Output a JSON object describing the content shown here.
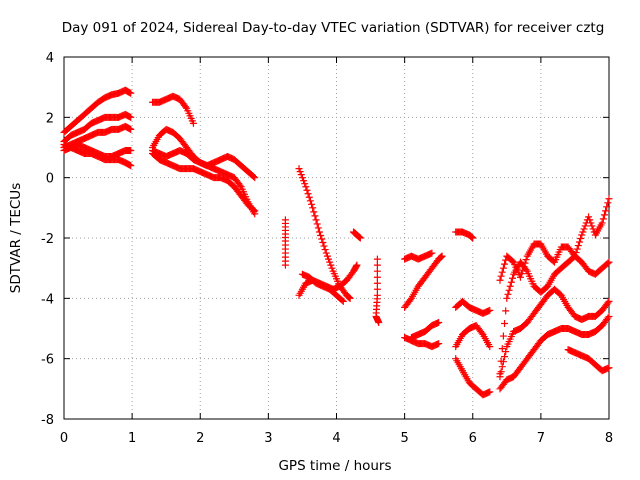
{
  "chart_data": {
    "type": "scatter",
    "title": "Day 091 of 2024, Sidereal Day-to-day VTEC variation (SDTVAR) for receiver cztg",
    "xlabel": "GPS time / hours",
    "ylabel": "SDTVAR / TECUs",
    "xlim": [
      0,
      8
    ],
    "ylim": [
      -8,
      4
    ],
    "xticks": [
      "0",
      "1",
      "2",
      "3",
      "4",
      "5",
      "6",
      "7",
      "8"
    ],
    "yticks": [
      "-8",
      "-6",
      "-4",
      "-2",
      "0",
      "2",
      "4"
    ],
    "grid": true,
    "marker": "plus",
    "color": "#ff0000",
    "series": [
      {
        "x": [
          0.0,
          0.1,
          0.2,
          0.3,
          0.4,
          0.5,
          0.6,
          0.7,
          0.8,
          0.9,
          0.98
        ],
        "y": [
          1.5,
          1.7,
          1.9,
          2.1,
          2.3,
          2.5,
          2.65,
          2.75,
          2.8,
          2.9,
          2.8
        ]
      },
      {
        "x": [
          0.0,
          0.1,
          0.2,
          0.3,
          0.4,
          0.5,
          0.6,
          0.7,
          0.8,
          0.9,
          0.98
        ],
        "y": [
          1.2,
          1.4,
          1.5,
          1.6,
          1.8,
          1.9,
          2.0,
          2.0,
          2.0,
          2.1,
          2.0
        ]
      },
      {
        "x": [
          0.0,
          0.1,
          0.2,
          0.3,
          0.4,
          0.5,
          0.6,
          0.7,
          0.8,
          0.9,
          0.98
        ],
        "y": [
          1.0,
          1.1,
          1.2,
          1.3,
          1.4,
          1.5,
          1.5,
          1.6,
          1.6,
          1.7,
          1.6
        ]
      },
      {
        "x": [
          0.0,
          0.1,
          0.2,
          0.3,
          0.4,
          0.5,
          0.6,
          0.7,
          0.8,
          0.9,
          0.98
        ],
        "y": [
          0.9,
          1.0,
          1.1,
          1.0,
          0.9,
          0.8,
          0.7,
          0.7,
          0.8,
          0.9,
          0.9
        ]
      },
      {
        "x": [
          0.0,
          0.1,
          0.2,
          0.3,
          0.4,
          0.5,
          0.6,
          0.7,
          0.8,
          0.9,
          0.98
        ],
        "y": [
          1.1,
          1.0,
          0.9,
          0.8,
          0.8,
          0.7,
          0.6,
          0.6,
          0.6,
          0.5,
          0.4
        ]
      },
      {
        "x": [
          1.3,
          1.4,
          1.5,
          1.6,
          1.7,
          1.8,
          1.9
        ],
        "y": [
          2.5,
          2.5,
          2.6,
          2.7,
          2.6,
          2.3,
          1.8
        ]
      },
      {
        "x": [
          1.3,
          1.4,
          1.5,
          1.6,
          1.7,
          1.8,
          1.9,
          2.0,
          2.1,
          2.2,
          2.3,
          2.4,
          2.5,
          2.6,
          2.7,
          2.8
        ],
        "y": [
          1.0,
          1.4,
          1.6,
          1.5,
          1.3,
          1.0,
          0.7,
          0.5,
          0.4,
          0.5,
          0.6,
          0.7,
          0.6,
          0.4,
          0.2,
          0.0
        ]
      },
      {
        "x": [
          1.3,
          1.4,
          1.5,
          1.6,
          1.7,
          1.8,
          1.9,
          2.0,
          2.1,
          2.2,
          2.3,
          2.4,
          2.5,
          2.6,
          2.7,
          2.8
        ],
        "y": [
          0.9,
          0.8,
          0.7,
          0.8,
          0.9,
          0.8,
          0.6,
          0.5,
          0.4,
          0.3,
          0.2,
          0.1,
          0.0,
          -0.3,
          -0.8,
          -1.2
        ]
      },
      {
        "x": [
          1.3,
          1.4,
          1.5,
          1.6,
          1.7,
          1.8,
          1.9,
          2.0,
          2.1,
          2.2,
          2.3,
          2.4,
          2.5,
          2.6,
          2.7,
          2.8
        ],
        "y": [
          0.8,
          0.6,
          0.5,
          0.4,
          0.3,
          0.3,
          0.3,
          0.2,
          0.1,
          0.0,
          0.0,
          -0.1,
          -0.3,
          -0.6,
          -0.9,
          -1.1
        ]
      },
      {
        "x": [
          3.25,
          3.25,
          3.25
        ],
        "y": [
          -1.4,
          -2.1,
          -2.9
        ]
      },
      {
        "x": [
          3.45,
          3.55,
          3.65,
          3.75,
          3.85,
          3.95,
          4.05,
          4.15,
          4.2
        ],
        "y": [
          0.3,
          -0.3,
          -1.0,
          -1.8,
          -2.5,
          -3.1,
          -3.6,
          -3.9,
          -4.0
        ]
      },
      {
        "x": [
          3.45,
          3.55,
          3.65,
          3.75,
          3.85,
          3.95,
          4.05,
          4.15,
          4.25,
          4.3
        ],
        "y": [
          -3.9,
          -3.5,
          -3.4,
          -3.5,
          -3.6,
          -3.7,
          -3.6,
          -3.4,
          -3.1,
          -2.9
        ]
      },
      {
        "x": [
          3.5,
          3.6,
          3.7,
          3.8,
          3.9,
          4.0,
          4.1
        ],
        "y": [
          -3.2,
          -3.3,
          -3.5,
          -3.6,
          -3.7,
          -3.9,
          -4.1
        ]
      },
      {
        "x": [
          4.25,
          4.3,
          4.35
        ],
        "y": [
          -1.8,
          -1.9,
          -2.0
        ]
      },
      {
        "x": [
          4.6,
          4.6,
          4.58,
          4.62
        ],
        "y": [
          -2.7,
          -3.9,
          -4.6,
          -4.8
        ]
      },
      {
        "x": [
          5.0,
          5.1,
          5.2,
          5.3,
          5.4
        ],
        "y": [
          -2.7,
          -2.6,
          -2.7,
          -2.6,
          -2.5
        ]
      },
      {
        "x": [
          5.0,
          5.1,
          5.2,
          5.3,
          5.4,
          5.5,
          5.55
        ],
        "y": [
          -4.3,
          -4.0,
          -3.6,
          -3.3,
          -3.0,
          -2.7,
          -2.6
        ]
      },
      {
        "x": [
          5.0,
          5.1,
          5.2,
          5.3,
          5.4,
          5.5
        ],
        "y": [
          -5.3,
          -5.4,
          -5.5,
          -5.5,
          -5.6,
          -5.5
        ]
      },
      {
        "x": [
          5.1,
          5.2,
          5.3,
          5.4,
          5.5
        ],
        "y": [
          -5.3,
          -5.2,
          -5.1,
          -4.9,
          -4.8
        ]
      },
      {
        "x": [
          5.75,
          5.85,
          5.95,
          6.0
        ],
        "y": [
          -1.8,
          -1.8,
          -1.9,
          -2.0
        ]
      },
      {
        "x": [
          5.75,
          5.85,
          5.95,
          6.05,
          6.15,
          6.25
        ],
        "y": [
          -4.3,
          -4.1,
          -4.3,
          -4.4,
          -4.5,
          -4.4
        ]
      },
      {
        "x": [
          5.75,
          5.85,
          5.95,
          6.05,
          6.15,
          6.25
        ],
        "y": [
          -5.6,
          -5.2,
          -5.0,
          -4.9,
          -5.2,
          -5.6
        ]
      },
      {
        "x": [
          5.75,
          5.85,
          5.95,
          6.05,
          6.15,
          6.25
        ],
        "y": [
          -6.0,
          -6.4,
          -6.8,
          -7.0,
          -7.2,
          -7.1
        ]
      },
      {
        "x": [
          6.4,
          6.5,
          6.6,
          6.7,
          6.8,
          6.9,
          7.0,
          7.1,
          7.2,
          7.3,
          7.4,
          7.5,
          7.6,
          7.7,
          7.8,
          7.9,
          8.0
        ],
        "y": [
          -6.5,
          -4.0,
          -3.2,
          -2.8,
          -3.1,
          -3.6,
          -3.8,
          -3.6,
          -3.2,
          -3.0,
          -2.8,
          -2.6,
          -2.8,
          -3.1,
          -3.2,
          -3.0,
          -2.8
        ]
      },
      {
        "x": [
          6.4,
          6.5,
          6.6,
          6.7,
          6.8,
          6.9,
          7.0,
          7.1,
          7.2,
          7.3,
          7.4,
          7.5,
          7.6,
          7.7,
          7.8,
          7.9,
          8.0
        ],
        "y": [
          -3.4,
          -2.6,
          -2.8,
          -3.3,
          -2.6,
          -2.2,
          -2.2,
          -2.6,
          -2.8,
          -2.3,
          -2.3,
          -2.6,
          -1.9,
          -1.3,
          -1.9,
          -1.5,
          -0.7
        ]
      },
      {
        "x": [
          6.4,
          6.5,
          6.6,
          6.7,
          6.8,
          6.9,
          7.0,
          7.1,
          7.2,
          7.3,
          7.4,
          7.5,
          7.6,
          7.7,
          7.8,
          7.9,
          8.0
        ],
        "y": [
          -6.6,
          -5.6,
          -5.1,
          -5.0,
          -4.8,
          -4.5,
          -4.2,
          -3.9,
          -3.7,
          -3.9,
          -4.3,
          -4.6,
          -4.7,
          -4.6,
          -4.6,
          -4.4,
          -4.1
        ]
      },
      {
        "x": [
          6.4,
          6.5,
          6.6,
          6.7,
          6.8,
          6.9,
          7.0,
          7.1,
          7.2,
          7.3,
          7.4,
          7.5,
          7.6,
          7.7,
          7.8,
          7.9,
          8.0
        ],
        "y": [
          -7.0,
          -6.7,
          -6.6,
          -6.3,
          -6.0,
          -5.7,
          -5.4,
          -5.2,
          -5.1,
          -5.0,
          -5.0,
          -5.1,
          -5.2,
          -5.2,
          -5.1,
          -4.9,
          -4.6
        ]
      },
      {
        "x": [
          7.4,
          7.5,
          7.6,
          7.7,
          7.8,
          7.9,
          8.0
        ],
        "y": [
          -5.7,
          -5.8,
          -5.9,
          -6.0,
          -6.2,
          -6.4,
          -6.3
        ]
      }
    ]
  }
}
